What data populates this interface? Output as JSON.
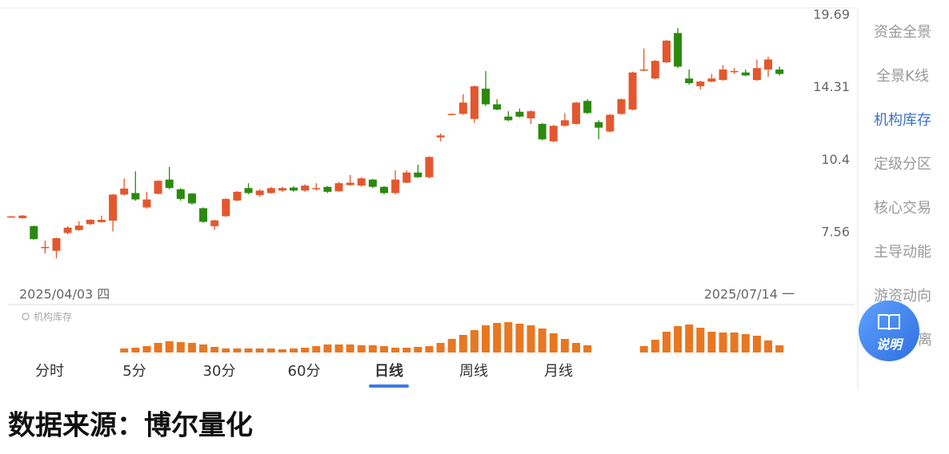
{
  "chart_data": {
    "type": "candlestick",
    "yscale": "log",
    "up_color": "#e4572e",
    "down_color": "#2b8a0e",
    "x_range_labels": [
      "2025/04/03 四",
      "2025/07/14 一"
    ],
    "ylim": [
      5.53,
      20.32
    ],
    "yticks": [
      19.69,
      14.31,
      10.4,
      7.56
    ],
    "open": [
      8.12,
      8.06,
      7.78,
      7.1,
      6.98,
      7.55,
      7.65,
      7.85,
      7.92,
      7.97,
      8.94,
      9.0,
      8.45,
      8.97,
      9.55,
      9.15,
      8.98,
      8.42,
      7.78,
      8.13,
      8.71,
      9.2,
      8.92,
      9.0,
      9.1,
      9.22,
      9.1,
      9.2,
      9.25,
      9.07,
      9.32,
      9.3,
      9.55,
      9.25,
      9.0,
      9.42,
      9.85,
      9.65,
      11.5,
      12.75,
      12.75,
      12.47,
      14.25,
      13.3,
      12.6,
      12.87,
      12.5,
      12.2,
      11.3,
      12.1,
      12.2,
      13.5,
      12.3,
      11.8,
      12.75,
      13.0,
      15.5,
      14.9,
      16.0,
      18.2,
      14.9,
      14.4,
      14.7,
      14.8,
      15.4,
      15.3,
      14.8,
      15.5,
      15.5
    ],
    "close": [
      8.12,
      8.15,
      7.35,
      7.1,
      7.38,
      7.73,
      7.8,
      8.0,
      8.0,
      8.94,
      9.18,
      8.75,
      8.75,
      9.5,
      9.2,
      8.77,
      8.6,
      7.93,
      7.98,
      8.77,
      9.05,
      9.0,
      9.1,
      9.2,
      9.2,
      9.1,
      9.3,
      9.2,
      9.05,
      9.4,
      9.42,
      9.6,
      9.25,
      9.0,
      9.55,
      9.85,
      9.65,
      10.55,
      11.6,
      12.75,
      13.4,
      14.4,
      13.3,
      13.0,
      12.4,
      12.6,
      12.9,
      11.4,
      12.1,
      12.4,
      13.4,
      12.8,
      12.0,
      12.7,
      13.6,
      15.3,
      15.5,
      16.1,
      17.6,
      15.7,
      14.6,
      14.7,
      14.9,
      15.5,
      15.4,
      15.1,
      15.6,
      16.2,
      15.2
    ],
    "high": [
      8.15,
      8.17,
      7.8,
      7.3,
      7.4,
      7.78,
      7.95,
      8.02,
      8.15,
      8.96,
      9.6,
      9.9,
      9.05,
      9.52,
      10.1,
      9.2,
      9.0,
      8.45,
      8.0,
      8.8,
      9.08,
      9.4,
      9.15,
      9.25,
      9.25,
      9.28,
      9.35,
      9.4,
      9.28,
      9.45,
      9.75,
      9.65,
      9.58,
      9.28,
      9.95,
      9.95,
      10.2,
      10.58,
      11.7,
      12.78,
      13.9,
      14.45,
      15.4,
      13.6,
      12.9,
      13.05,
      12.95,
      12.25,
      12.15,
      12.8,
      13.45,
      13.6,
      12.4,
      12.75,
      13.65,
      15.35,
      17.0,
      16.15,
      17.65,
      18.6,
      15.5,
      14.75,
      15.2,
      15.8,
      15.6,
      15.5,
      16.2,
      16.4,
      15.7
    ],
    "low": [
      8.08,
      8.04,
      7.33,
      6.9,
      6.75,
      7.5,
      7.62,
      7.82,
      7.9,
      7.6,
      8.9,
      8.7,
      8.4,
      8.95,
      9.15,
      8.7,
      8.55,
      7.9,
      7.65,
      8.1,
      8.68,
      8.95,
      8.85,
      8.98,
      9.05,
      9.05,
      9.05,
      9.1,
      9.0,
      9.05,
      9.3,
      9.25,
      9.2,
      8.95,
      8.95,
      9.4,
      9.62,
      9.6,
      11.3,
      12.72,
      12.7,
      12.25,
      13.2,
      12.95,
      12.35,
      12.55,
      12.2,
      11.35,
      11.25,
      12.05,
      12.15,
      12.75,
      11.4,
      11.75,
      12.7,
      12.95,
      15.4,
      14.85,
      15.95,
      15.6,
      14.5,
      14.2,
      14.65,
      14.75,
      15.2,
      15.05,
      14.75,
      15.0,
      15.1
    ],
    "indicator": {
      "title": "机构库存",
      "color": "#e87722",
      "ylim": [
        0,
        45
      ],
      "values": [
        null,
        null,
        null,
        null,
        null,
        null,
        null,
        null,
        null,
        null,
        5,
        6,
        8,
        12,
        14,
        13,
        12,
        10,
        7,
        5,
        5,
        5,
        5,
        5,
        4,
        5,
        6,
        8,
        10,
        10,
        10,
        9,
        9,
        8,
        6,
        6,
        7,
        8,
        12,
        17,
        22,
        28,
        34,
        37,
        38,
        36,
        34,
        30,
        24,
        17,
        12,
        9,
        null,
        null,
        null,
        null,
        8,
        16,
        26,
        33,
        35,
        31,
        26,
        25,
        25,
        23,
        21,
        15,
        9
      ]
    }
  },
  "tabs": [
    "分时",
    "5分",
    "30分",
    "60分",
    "日线",
    "周线",
    "月线"
  ],
  "active_tab": 4,
  "sidebar": [
    "资金全景",
    "全景K线",
    "机构库存",
    "定级分区",
    "核心交易",
    "主导动能",
    "游资动向",
    "离"
  ],
  "active_sidebar": 2,
  "button": "说明",
  "footer": "数据来源：博尔量化"
}
